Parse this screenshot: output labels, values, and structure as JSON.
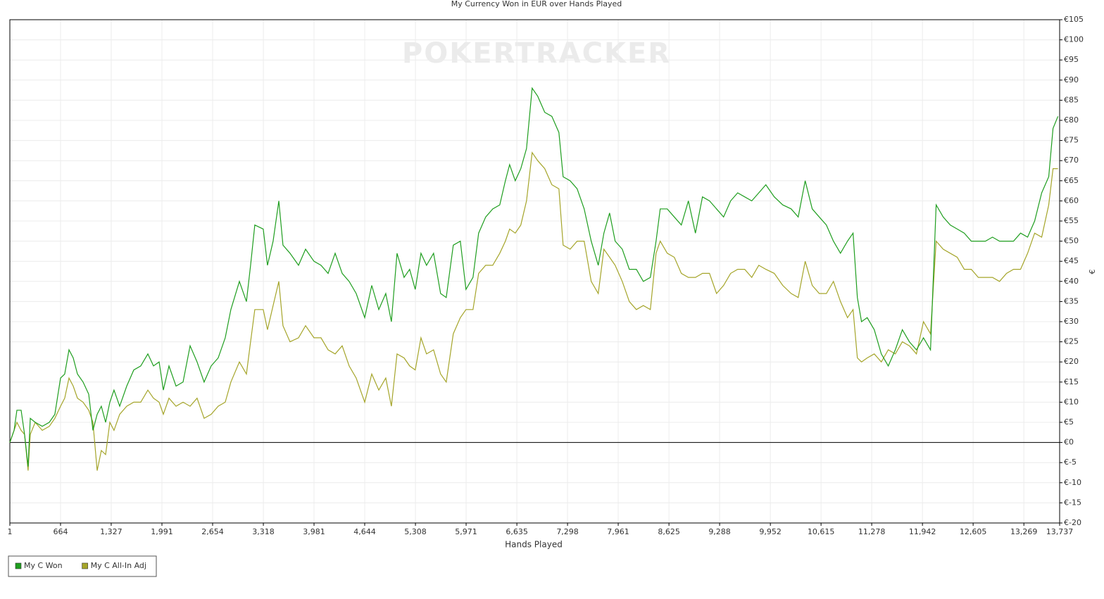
{
  "chart_data": {
    "type": "line",
    "title": "My Currency Won in EUR over Hands Played",
    "watermark": "POKERTRACKER",
    "xlabel": "Hands Played",
    "ylabel": "€",
    "x": [
      1,
      56,
      93,
      148,
      194,
      240,
      268,
      333,
      425,
      517,
      590,
      664,
      719,
      775,
      830,
      885,
      959,
      1033,
      1088,
      1143,
      1198,
      1254,
      1309,
      1364,
      1438,
      1530,
      1622,
      1714,
      1807,
      1880,
      1954,
      2009,
      2083,
      2175,
      2267,
      2359,
      2451,
      2543,
      2635,
      2727,
      2819,
      2893,
      3004,
      3096,
      3151,
      3206,
      3317,
      3372,
      3446,
      3520,
      3575,
      3667,
      3778,
      3870,
      3980,
      4072,
      4165,
      4257,
      4349,
      4441,
      4533,
      4644,
      4736,
      4828,
      4920,
      4993,
      5067,
      5159,
      5232,
      5306,
      5380,
      5453,
      5545,
      5637,
      5711,
      5803,
      5895,
      5969,
      6061,
      6135,
      6227,
      6319,
      6411,
      6485,
      6540,
      6614,
      6687,
      6761,
      6835,
      6908,
      7000,
      7093,
      7185,
      7240,
      7332,
      7424,
      7516,
      7608,
      7700,
      7774,
      7848,
      7921,
      8014,
      8106,
      8198,
      8290,
      8382,
      8456,
      8511,
      8603,
      8695,
      8787,
      8879,
      8971,
      9063,
      9156,
      9248,
      9340,
      9432,
      9524,
      9616,
      9708,
      9800,
      9893,
      10003,
      10114,
      10224,
      10316,
      10408,
      10500,
      10592,
      10685,
      10777,
      10869,
      10961,
      11034,
      11090,
      11145,
      11219,
      11311,
      11403,
      11495,
      11587,
      11679,
      11771,
      11863,
      11955,
      12047,
      12121,
      12213,
      12305,
      12397,
      12489,
      12581,
      12673,
      12766,
      12858,
      12950,
      13042,
      13134,
      13226,
      13318,
      13410,
      13502,
      13594,
      13650,
      13715
    ],
    "series": [
      {
        "name": "My C Won",
        "color": "#1f9e1f",
        "values": [
          0,
          3,
          8,
          8,
          2,
          -6,
          6,
          5,
          4,
          5,
          7,
          16,
          17,
          23,
          21,
          17,
          15,
          12,
          3,
          7,
          9,
          5,
          10,
          13,
          9,
          14,
          18,
          19,
          22,
          19,
          20,
          13,
          19,
          14,
          15,
          24,
          20,
          15,
          19,
          21,
          26,
          33,
          40,
          35,
          44,
          54,
          53,
          44,
          50,
          60,
          49,
          47,
          44,
          48,
          45,
          44,
          42,
          47,
          42,
          40,
          37,
          31,
          39,
          33,
          37,
          30,
          47,
          41,
          43,
          38,
          47,
          44,
          47,
          37,
          36,
          49,
          50,
          38,
          41,
          52,
          56,
          58,
          59,
          65,
          69,
          65,
          68,
          73,
          88,
          86,
          82,
          81,
          77,
          66,
          65,
          63,
          58,
          50,
          44,
          52,
          57,
          50,
          48,
          43,
          43,
          40,
          41,
          50,
          58,
          58,
          56,
          54,
          60,
          52,
          61,
          60,
          58,
          56,
          60,
          62,
          61,
          60,
          62,
          64,
          61,
          59,
          58,
          56,
          65,
          58,
          56,
          54,
          50,
          47,
          50,
          52,
          36,
          30,
          31,
          28,
          22,
          19,
          23,
          28,
          25,
          23,
          26,
          23,
          59,
          56,
          54,
          53,
          52,
          50,
          50,
          50,
          51,
          50,
          50,
          50,
          52,
          51,
          55,
          62,
          66,
          78,
          81
        ]
      },
      {
        "name": "My C All-In Adj",
        "color": "#a5a52a",
        "values": [
          0,
          3,
          5,
          3,
          2,
          -7,
          2,
          5,
          3,
          4,
          6,
          9,
          11,
          16,
          14,
          11,
          10,
          8,
          5,
          -7,
          -2,
          -3,
          5,
          3,
          7,
          9,
          10,
          10,
          13,
          11,
          10,
          7,
          11,
          9,
          10,
          9,
          11,
          6,
          7,
          9,
          10,
          15,
          20,
          17,
          25,
          33,
          33,
          28,
          34,
          40,
          29,
          25,
          26,
          29,
          26,
          26,
          23,
          22,
          24,
          19,
          16,
          10,
          17,
          13,
          16,
          9,
          22,
          21,
          19,
          18,
          26,
          22,
          23,
          17,
          15,
          27,
          31,
          33,
          33,
          42,
          44,
          44,
          47,
          50,
          53,
          52,
          54,
          60,
          72,
          70,
          68,
          64,
          63,
          49,
          48,
          50,
          50,
          40,
          37,
          48,
          46,
          44,
          40,
          35,
          33,
          34,
          33,
          47,
          50,
          47,
          46,
          42,
          41,
          41,
          42,
          42,
          37,
          39,
          42,
          43,
          43,
          41,
          44,
          43,
          42,
          39,
          37,
          36,
          45,
          39,
          37,
          37,
          40,
          35,
          31,
          33,
          21,
          20,
          21,
          22,
          20,
          23,
          22,
          25,
          24,
          22,
          30,
          27,
          50,
          48,
          47,
          46,
          43,
          43,
          41,
          41,
          41,
          40,
          42,
          43,
          43,
          47,
          52,
          51,
          59,
          68,
          68
        ]
      }
    ],
    "xlim": [
      1,
      13737
    ],
    "ylim": [
      -20,
      105
    ],
    "xticks": [
      1,
      664,
      {
        "value": 1327,
        "label": "1,327"
      },
      {
        "value": 1991,
        "label": "1,991"
      },
      {
        "value": 2654,
        "label": "2,654"
      },
      {
        "value": 3318,
        "label": "3,318"
      },
      {
        "value": 3981,
        "label": "3,981"
      },
      {
        "value": 4644,
        "label": "4,644"
      },
      {
        "value": 5308,
        "label": "5,308"
      },
      {
        "value": 5971,
        "label": "5,971"
      },
      {
        "value": 6635,
        "label": "6,635"
      },
      {
        "value": 7298,
        "label": "7,298"
      },
      {
        "value": 7961,
        "label": "7,961"
      },
      {
        "value": 8625,
        "label": "8,625"
      },
      {
        "value": 9288,
        "label": "9,288"
      },
      {
        "value": 9952,
        "label": "9,952"
      },
      {
        "value": 10615,
        "label": "10,615"
      },
      {
        "value": 11278,
        "label": "11,278"
      },
      {
        "value": 11942,
        "label": "11,942"
      },
      {
        "value": 12605,
        "label": "12,605"
      },
      {
        "value": 13269,
        "label": "13,269"
      },
      {
        "value": 13737,
        "label": "13,737"
      }
    ],
    "yticks": [
      {
        "value": 105,
        "label": "€105"
      },
      {
        "value": 100,
        "label": "€100"
      },
      {
        "value": 95,
        "label": "€95"
      },
      {
        "value": 90,
        "label": "€90"
      },
      {
        "value": 85,
        "label": "€85"
      },
      {
        "value": 80,
        "label": "€80"
      },
      {
        "value": 75,
        "label": "€75"
      },
      {
        "value": 70,
        "label": "€70"
      },
      {
        "value": 65,
        "label": "€65"
      },
      {
        "value": 60,
        "label": "€60"
      },
      {
        "value": 55,
        "label": "€55"
      },
      {
        "value": 50,
        "label": "€50"
      },
      {
        "value": 45,
        "label": "€45"
      },
      {
        "value": 40,
        "label": "€40"
      },
      {
        "value": 35,
        "label": "€35"
      },
      {
        "value": 30,
        "label": "€30"
      },
      {
        "value": 25,
        "label": "€25"
      },
      {
        "value": 20,
        "label": "€20"
      },
      {
        "value": 15,
        "label": "€15"
      },
      {
        "value": 10,
        "label": "€10"
      },
      {
        "value": 5,
        "label": "€5"
      },
      {
        "value": 0,
        "label": "€0"
      },
      {
        "value": -5,
        "label": "€-5"
      },
      {
        "value": -10,
        "label": "€-10"
      },
      {
        "value": -15,
        "label": "€-15"
      },
      {
        "value": -20,
        "label": "€-20"
      }
    ],
    "grid": true,
    "legend": "bottom-left"
  }
}
